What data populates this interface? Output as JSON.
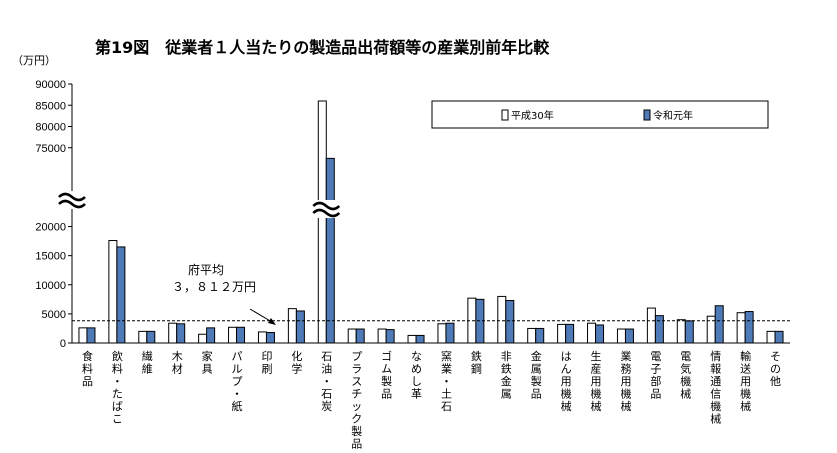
{
  "chart_data": {
    "type": "bar",
    "title": "第19図　従業者１人当たりの製造品出荷額等の産業別前年比較",
    "ylabel": "（万円）",
    "ylim_upper": [
      70000,
      90000
    ],
    "ylim_lower": [
      0,
      22500
    ],
    "yticks_upper": [
      "90000",
      "85000",
      "80000",
      "75000"
    ],
    "yticks_upper_values": [
      90000,
      85000,
      80000,
      75000
    ],
    "yticks_lower": [
      "20000",
      "15000",
      "10000",
      "5000",
      "0"
    ],
    "yticks_lower_values": [
      20000,
      15000,
      10000,
      5000,
      0
    ],
    "categories": [
      "食料品",
      "飲料・たばこ",
      "繊維",
      "木材",
      "家具",
      "パルプ・紙",
      "印刷",
      "化学",
      "石油・石炭",
      "プラスチック製品",
      "ゴム製品",
      "なめし革",
      "窯業・土石",
      "鉄鋼",
      "非鉄金属",
      "金属製品",
      "はん用機械",
      "生産用機械",
      "業務用機械",
      "電子部品",
      "電気機械",
      "情報通信機械",
      "輸送用機械",
      "その他"
    ],
    "series": [
      {
        "name": "平成30年",
        "color": "#ffffff",
        "values": [
          2600,
          17600,
          2000,
          3400,
          1500,
          2700,
          1900,
          5900,
          86000,
          2400,
          2400,
          1300,
          3300,
          7700,
          8000,
          2500,
          3200,
          3400,
          2400,
          6000,
          4000,
          4600,
          5200,
          2000
        ]
      },
      {
        "name": "令和元年",
        "color": "#4f7ab8",
        "values": [
          2600,
          16500,
          2000,
          3300,
          2600,
          2700,
          1800,
          5500,
          72500,
          2400,
          2300,
          1300,
          3400,
          7500,
          7300,
          2500,
          3200,
          3100,
          2400,
          4700,
          3800,
          6400,
          5400,
          2000
        ]
      }
    ],
    "average": {
      "label_line1": "府平均",
      "label_line2": "３，８１２万円",
      "value": 3812
    },
    "legend_position": "top-right",
    "axis_break": "≈"
  }
}
